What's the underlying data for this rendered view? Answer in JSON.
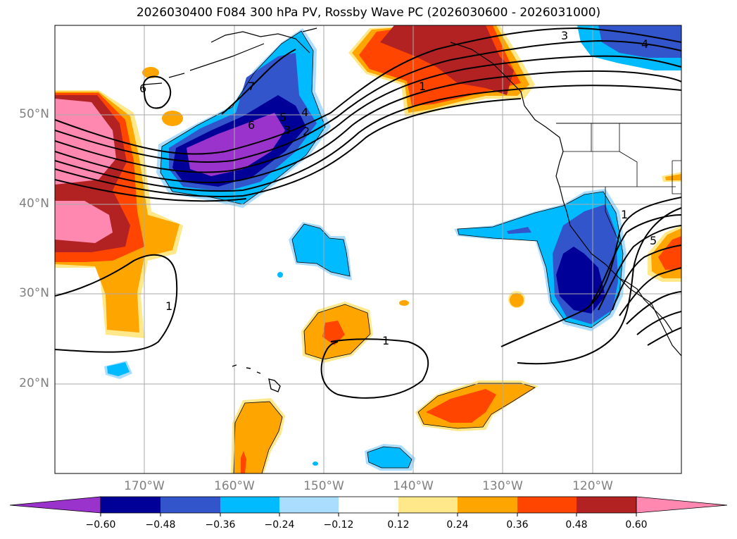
{
  "title": "2026030400 F084 300 hPa PV, Rossby Wave PC (2026030600 - 2026031000)",
  "lat_labels": [
    "50°N",
    "40°N",
    "30°N",
    "20°N"
  ],
  "lon_labels": [
    "170°W",
    "160°W",
    "150°W",
    "140°W",
    "130°W",
    "120°W"
  ],
  "contour_labels": [
    "6",
    "7",
    "6",
    "5",
    "4",
    "3",
    "2",
    "1",
    "3",
    "4",
    "1",
    "1",
    "5",
    "1"
  ],
  "colorbar": {
    "colors": [
      "#9933cc",
      "#000099",
      "#3355cc",
      "#00bbff",
      "#aaddff",
      "#ffffff",
      "#ffe88a",
      "#ffa500",
      "#ff4500",
      "#b22222",
      "#ff88b0"
    ],
    "tick_labels": [
      "−0.60",
      "−0.48",
      "−0.36",
      "−0.24",
      "−0.12",
      "0.12",
      "0.24",
      "0.36",
      "0.48",
      "0.60"
    ]
  }
}
